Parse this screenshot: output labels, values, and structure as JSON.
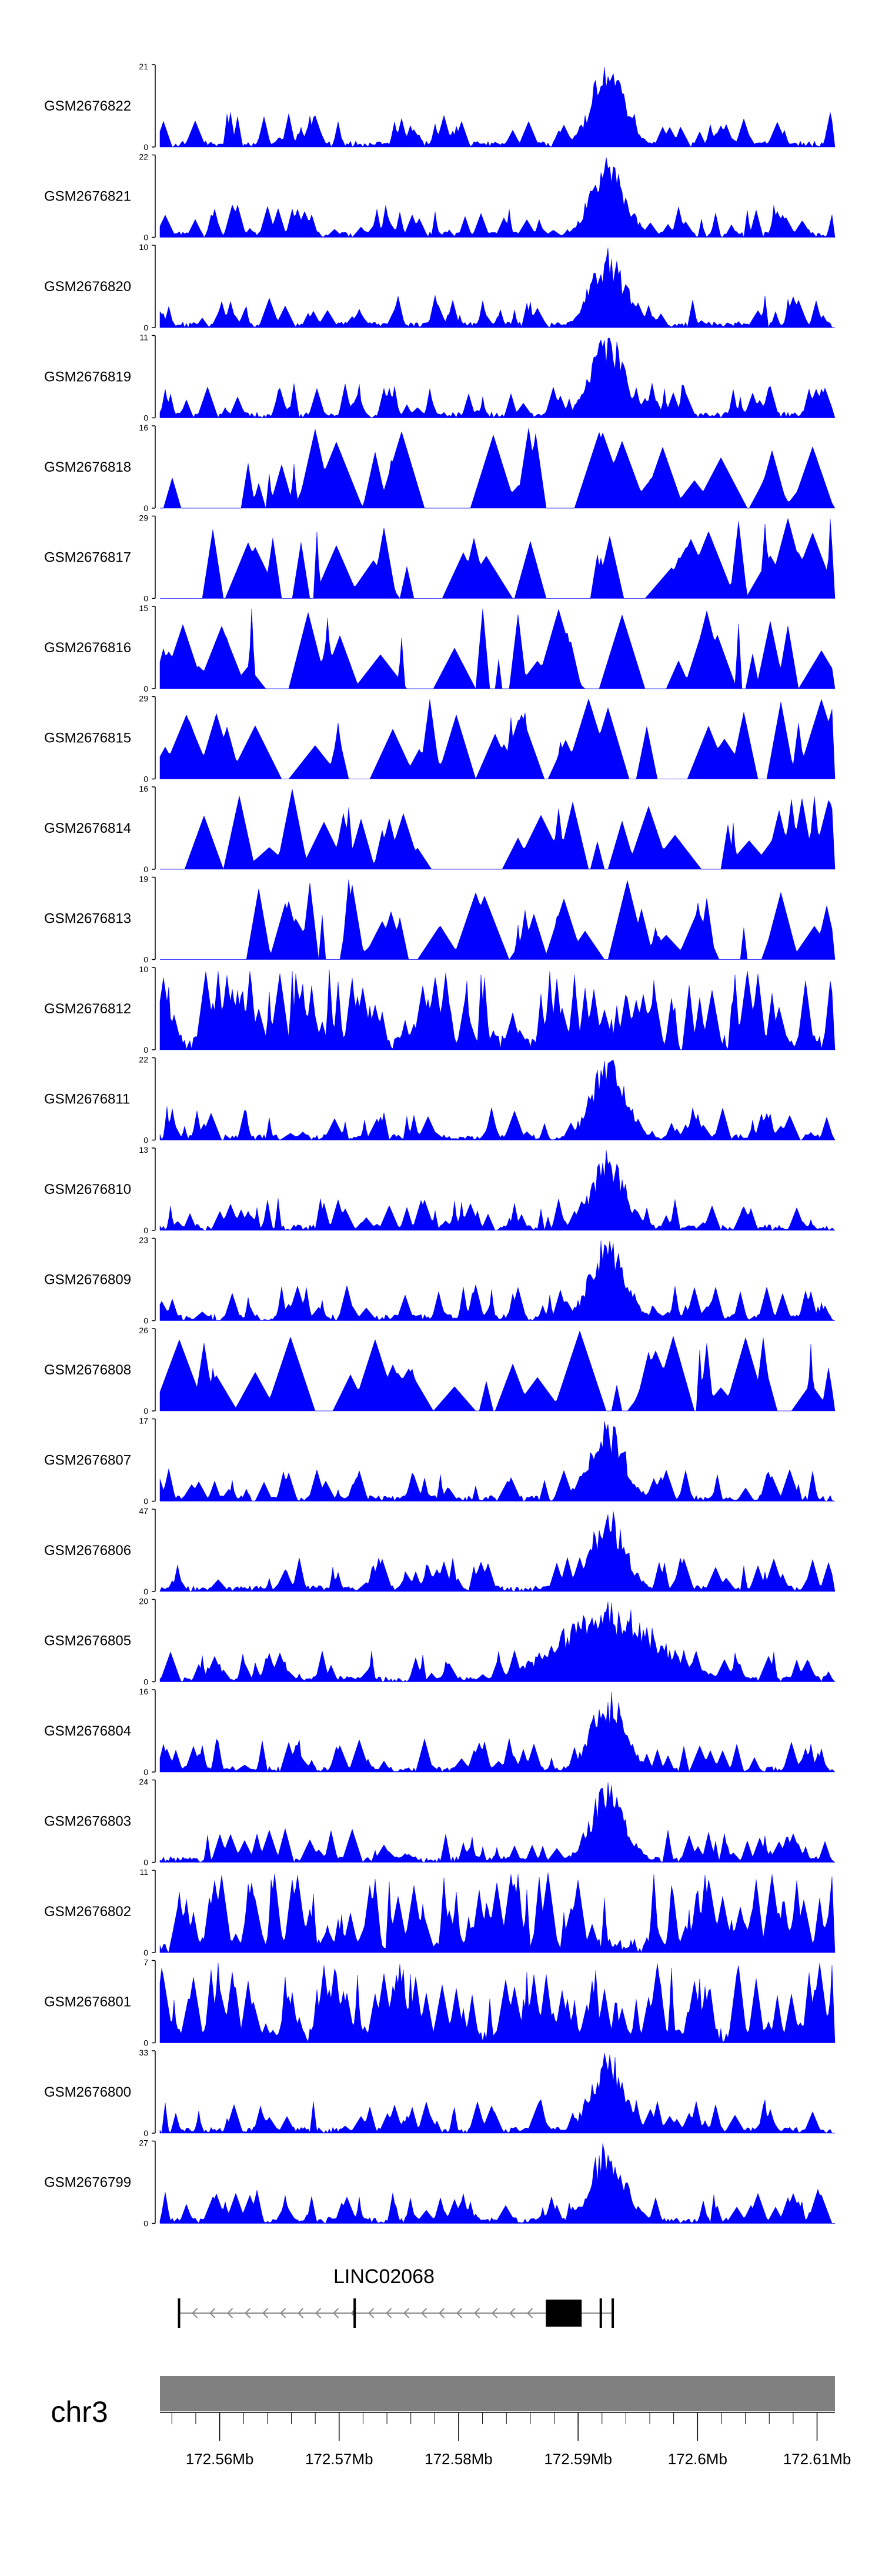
{
  "colors": {
    "signal": "#0000ff",
    "axis": "#000000",
    "chromosome_bar": "#808080",
    "text": "#000000",
    "background": "#ffffff"
  },
  "chart_data": {
    "type": "area",
    "title": "",
    "xlabel": "",
    "ylabel": "",
    "region": {
      "chromosome": "chr3",
      "start_mb": 172.555,
      "end_mb": 172.6115
    },
    "peak_center_mb": 172.5925,
    "tracks": [
      {
        "name": "GSM2676822",
        "ymax": "21",
        "ymin": "0",
        "profile": "peaked",
        "seed": 22
      },
      {
        "name": "GSM2676821",
        "ymax": "22",
        "ymin": "0",
        "profile": "peaked",
        "seed": 21
      },
      {
        "name": "GSM2676820",
        "ymax": "10",
        "ymin": "0",
        "profile": "peaked",
        "seed": 20
      },
      {
        "name": "GSM2676819",
        "ymax": "11",
        "ymin": "0",
        "profile": "peaked",
        "seed": 19
      },
      {
        "name": "GSM2676818",
        "ymax": "16",
        "ymin": "0",
        "profile": "sparse",
        "seed": 18
      },
      {
        "name": "GSM2676817",
        "ymax": "29",
        "ymin": "0",
        "profile": "sparse",
        "seed": 17
      },
      {
        "name": "GSM2676816",
        "ymax": "15",
        "ymin": "0",
        "profile": "sparse",
        "seed": 16
      },
      {
        "name": "GSM2676815",
        "ymax": "29",
        "ymin": "0",
        "profile": "sparse",
        "seed": 15
      },
      {
        "name": "GSM2676814",
        "ymax": "16",
        "ymin": "0",
        "profile": "sparse",
        "seed": 14
      },
      {
        "name": "GSM2676813",
        "ymax": "19",
        "ymin": "0",
        "profile": "sparse",
        "seed": 13
      },
      {
        "name": "GSM2676812",
        "ymax": "10",
        "ymin": "0",
        "profile": "dense",
        "seed": 12
      },
      {
        "name": "GSM2676811",
        "ymax": "22",
        "ymin": "0",
        "profile": "peaked",
        "seed": 11
      },
      {
        "name": "GSM2676810",
        "ymax": "13",
        "ymin": "0",
        "profile": "peaked",
        "seed": 10
      },
      {
        "name": "GSM2676809",
        "ymax": "23",
        "ymin": "0",
        "profile": "peaked",
        "seed": 9
      },
      {
        "name": "GSM2676808",
        "ymax": "26",
        "ymin": "0",
        "profile": "sparse",
        "seed": 8
      },
      {
        "name": "GSM2676807",
        "ymax": "17",
        "ymin": "0",
        "profile": "peaked",
        "seed": 7
      },
      {
        "name": "GSM2676806",
        "ymax": "47",
        "ymin": "0",
        "profile": "peaked",
        "seed": 6
      },
      {
        "name": "GSM2676805",
        "ymax": "20",
        "ymin": "0",
        "profile": "broad",
        "seed": 5
      },
      {
        "name": "GSM2676804",
        "ymax": "16",
        "ymin": "0",
        "profile": "peaked",
        "seed": 4
      },
      {
        "name": "GSM2676803",
        "ymax": "24",
        "ymin": "0",
        "profile": "peaked",
        "seed": 3
      },
      {
        "name": "GSM2676802",
        "ymax": "11",
        "ymin": "0",
        "profile": "dense",
        "seed": 2
      },
      {
        "name": "GSM2676801",
        "ymax": "7",
        "ymin": "0",
        "profile": "dense",
        "seed": 1
      },
      {
        "name": "GSM2676800",
        "ymax": "33",
        "ymin": "0",
        "profile": "peaked",
        "seed": 100
      },
      {
        "name": "GSM2676799",
        "ymax": "27",
        "ymin": "0",
        "profile": "peaked",
        "seed": 99
      }
    ],
    "gene": {
      "name": "LINC02068",
      "strand": "-",
      "start_mb": 172.5565,
      "end_mb": 172.5929,
      "exons": [
        {
          "start_mb": 172.5565,
          "end_mb": 172.5566
        },
        {
          "start_mb": 172.5712,
          "end_mb": 172.5713
        },
        {
          "start_mb": 172.5873,
          "end_mb": 172.5903
        },
        {
          "start_mb": 172.5918,
          "end_mb": 172.592
        },
        {
          "start_mb": 172.5928,
          "end_mb": 172.5929
        }
      ]
    },
    "ideogram": {
      "label": "chr3",
      "major_ticks": [
        {
          "pos_mb": 172.56,
          "label": "172.56Mb"
        },
        {
          "pos_mb": 172.57,
          "label": "172.57Mb"
        },
        {
          "pos_mb": 172.58,
          "label": "172.58Mb"
        },
        {
          "pos_mb": 172.59,
          "label": "172.59Mb"
        },
        {
          "pos_mb": 172.6,
          "label": "172.6Mb"
        },
        {
          "pos_mb": 172.61,
          "label": "172.61Mb"
        }
      ],
      "minor_tick_step_mb": 0.002
    }
  }
}
